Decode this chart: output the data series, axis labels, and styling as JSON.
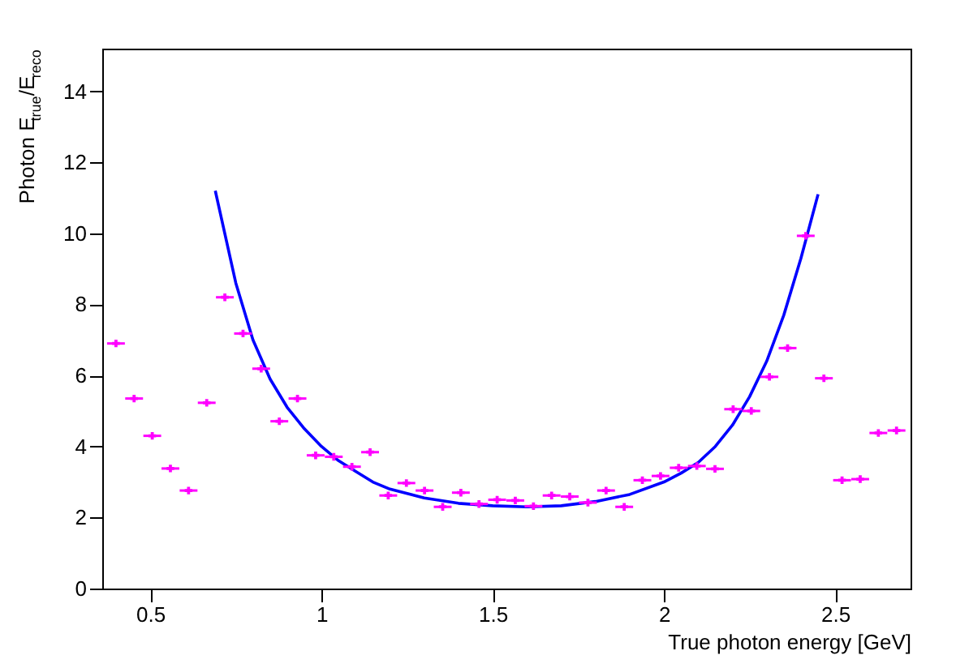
{
  "chart_data": {
    "type": "scatter",
    "xlabel": "True photon energy [GeV]",
    "ylabel": "Photon E$_{true}$/E$_{reco}$",
    "xlim": [
      0.36,
      2.72
    ],
    "xticks": [
      0.5,
      1,
      1.5,
      2,
      2.5
    ],
    "ylim": [
      0,
      15.2
    ],
    "yticks": [
      0,
      2,
      4,
      6,
      8,
      10,
      12,
      14
    ],
    "grid": false,
    "series": [
      {
        "color": "#ff00ff",
        "marker": "cross",
        "x": [
          0.4,
          0.453,
          0.506,
          0.559,
          0.612,
          0.665,
          0.718,
          0.771,
          0.824,
          0.877,
          0.93,
          0.983,
          1.036,
          1.089,
          1.142,
          1.195,
          1.248,
          1.301,
          1.354,
          1.407,
          1.46,
          1.513,
          1.566,
          1.619,
          1.672,
          1.725,
          1.778,
          1.831,
          1.884,
          1.937,
          1.99,
          2.043,
          2.096,
          2.149,
          2.202,
          2.255,
          2.308,
          2.361,
          2.414,
          2.467,
          2.52,
          2.573,
          2.626,
          2.679
        ],
        "values": [
          6.9,
          5.35,
          4.3,
          3.38,
          2.76,
          5.23,
          8.2,
          7.18,
          6.19,
          4.71,
          5.35,
          3.75,
          3.71,
          3.43,
          3.84,
          2.62,
          2.97,
          2.76,
          2.3,
          2.7,
          2.38,
          2.5,
          2.48,
          2.32,
          2.62,
          2.59,
          2.42,
          2.76,
          2.3,
          3.05,
          3.17,
          3.4,
          3.45,
          3.37,
          5.05,
          5.0,
          5.96,
          6.77,
          9.93,
          5.92,
          3.05,
          3.08,
          4.38,
          4.45
        ],
        "xerrors": [
          0.026,
          0.026,
          0.026,
          0.026,
          0.026,
          0.026,
          0.026,
          0.026,
          0.026,
          0.026,
          0.026,
          0.026,
          0.026,
          0.026,
          0.026,
          0.026,
          0.026,
          0.026,
          0.026,
          0.026,
          0.026,
          0.026,
          0.026,
          0.026,
          0.026,
          0.026,
          0.026,
          0.026,
          0.026,
          0.026,
          0.026,
          0.026,
          0.026,
          0.026,
          0.026,
          0.026,
          0.026,
          0.026,
          0.026,
          0.026,
          0.026,
          0.026,
          0.026,
          0.026
        ]
      },
      {
        "type": "line",
        "color": "#0000ff",
        "marker": "none",
        "line_style": "solid",
        "x": [
          0.69,
          0.75,
          0.8,
          0.85,
          0.9,
          0.95,
          1.0,
          1.05,
          1.1,
          1.15,
          1.2,
          1.3,
          1.4,
          1.5,
          1.6,
          1.7,
          1.8,
          1.9,
          2.0,
          2.05,
          2.1,
          2.15,
          2.2,
          2.25,
          2.3,
          2.35,
          2.4,
          2.45
        ],
        "values": [
          11.2,
          8.6,
          7.0,
          5.9,
          5.1,
          4.5,
          4.0,
          3.6,
          3.3,
          3.0,
          2.8,
          2.55,
          2.4,
          2.33,
          2.3,
          2.33,
          2.45,
          2.65,
          3.0,
          3.25,
          3.55,
          4.0,
          4.6,
          5.4,
          6.4,
          7.7,
          9.3,
          11.1
        ]
      }
    ]
  }
}
